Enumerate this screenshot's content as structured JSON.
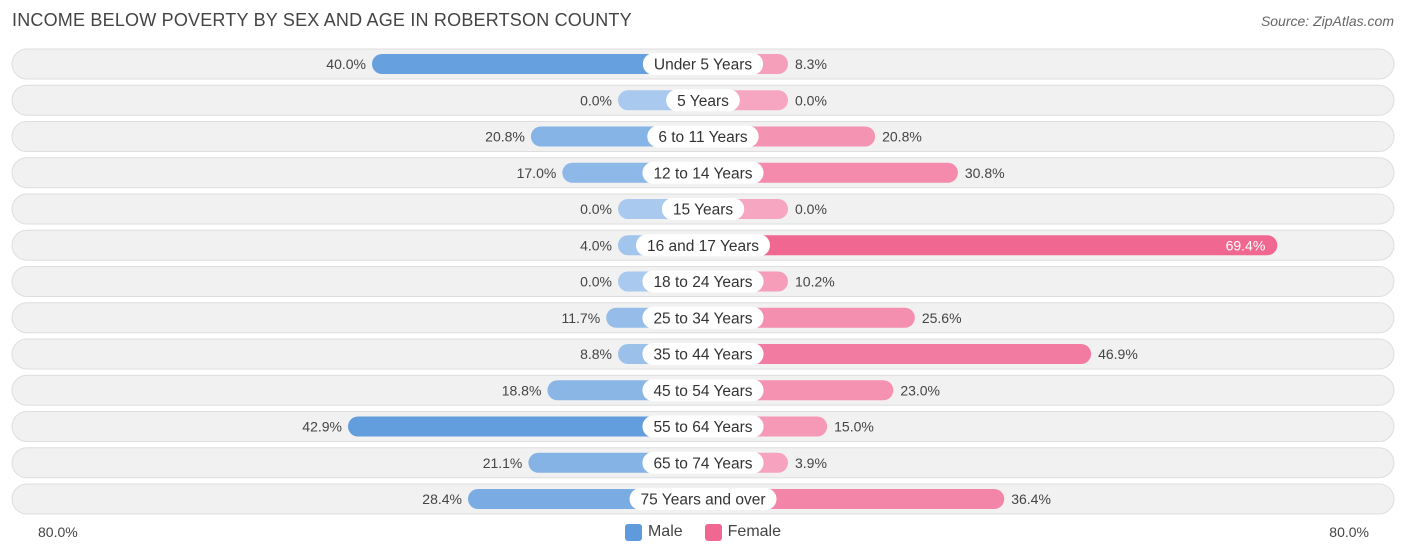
{
  "header": {
    "title": "INCOME BELOW POVERTY BY SEX AND AGE IN ROBERTSON COUNTY",
    "source": "Source: ZipAtlas.com"
  },
  "axis": {
    "left_label": "80.0%",
    "right_label": "80.0%"
  },
  "legend": {
    "male": "Male",
    "female": "Female"
  },
  "colors": {
    "male_strong": "#5f9bdc",
    "male_light": "#a9c9ee",
    "female_strong": "#f06791",
    "female_light": "#f7a6c1",
    "row_bg": "#f1f1f1"
  },
  "chart_data": {
    "type": "bar",
    "orientation": "horizontal-diverging",
    "title": "INCOME BELOW POVERTY BY SEX AND AGE IN ROBERTSON COUNTY",
    "xlim": [
      -80,
      80
    ],
    "categories": [
      "Under 5 Years",
      "5 Years",
      "6 to 11 Years",
      "12 to 14 Years",
      "15 Years",
      "16 and 17 Years",
      "18 to 24 Years",
      "25 to 34 Years",
      "35 to 44 Years",
      "45 to 54 Years",
      "55 to 64 Years",
      "65 to 74 Years",
      "75 Years and over"
    ],
    "series": [
      {
        "name": "Male",
        "values": [
          40.0,
          0.0,
          20.8,
          17.0,
          0.0,
          4.0,
          0.0,
          11.7,
          8.8,
          18.8,
          42.9,
          21.1,
          28.4
        ],
        "labels": [
          "40.0%",
          "0.0%",
          "20.8%",
          "17.0%",
          "0.0%",
          "4.0%",
          "0.0%",
          "11.7%",
          "8.8%",
          "18.8%",
          "42.9%",
          "21.1%",
          "28.4%"
        ]
      },
      {
        "name": "Female",
        "values": [
          8.3,
          0.0,
          20.8,
          30.8,
          0.0,
          69.4,
          10.2,
          25.6,
          46.9,
          23.0,
          15.0,
          3.9,
          36.4
        ],
        "labels": [
          "8.3%",
          "0.0%",
          "20.8%",
          "30.8%",
          "0.0%",
          "69.4%",
          "10.2%",
          "25.6%",
          "46.9%",
          "23.0%",
          "15.0%",
          "3.9%",
          "36.4%"
        ]
      }
    ],
    "legend_position": "bottom-center"
  }
}
